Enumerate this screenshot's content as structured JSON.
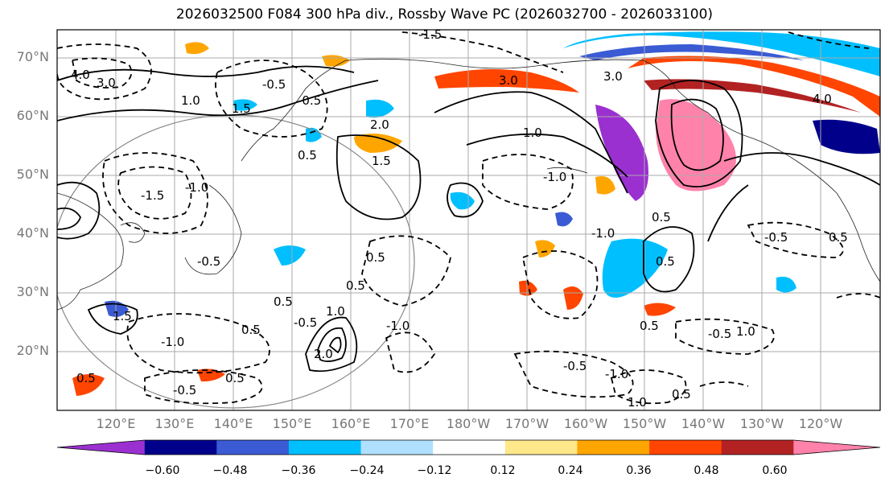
{
  "title": "2026032500 F084 300 hPa div., Rossby Wave PC (2026032700 - 2026033100)",
  "map": {
    "lat_labels": [
      "70°N",
      "60°N",
      "50°N",
      "40°N",
      "30°N",
      "20°N"
    ],
    "lon_labels": [
      "120°E",
      "130°E",
      "140°E",
      "150°E",
      "160°E",
      "170°E",
      "180°W",
      "170°W",
      "160°W",
      "150°W",
      "140°W",
      "130°W",
      "120°W"
    ],
    "contour_labels": [
      "0.5",
      "1.0",
      "1.5",
      "2.0",
      "-0.5",
      "-1.0",
      "-1.5",
      "3.0",
      "4.0"
    ]
  },
  "colorbar": {
    "ticks": [
      "−0.60",
      "−0.48",
      "−0.36",
      "−0.24",
      "−0.12",
      "0.12",
      "0.24",
      "0.36",
      "0.48",
      "0.60"
    ],
    "colors": [
      "#9b30d0",
      "#00008b",
      "#3a5bd3",
      "#00bfff",
      "#b0e0ff",
      "#ffffff",
      "#ffe88a",
      "#ffa500",
      "#ff4500",
      "#b22222",
      "#ff82ab"
    ]
  }
}
